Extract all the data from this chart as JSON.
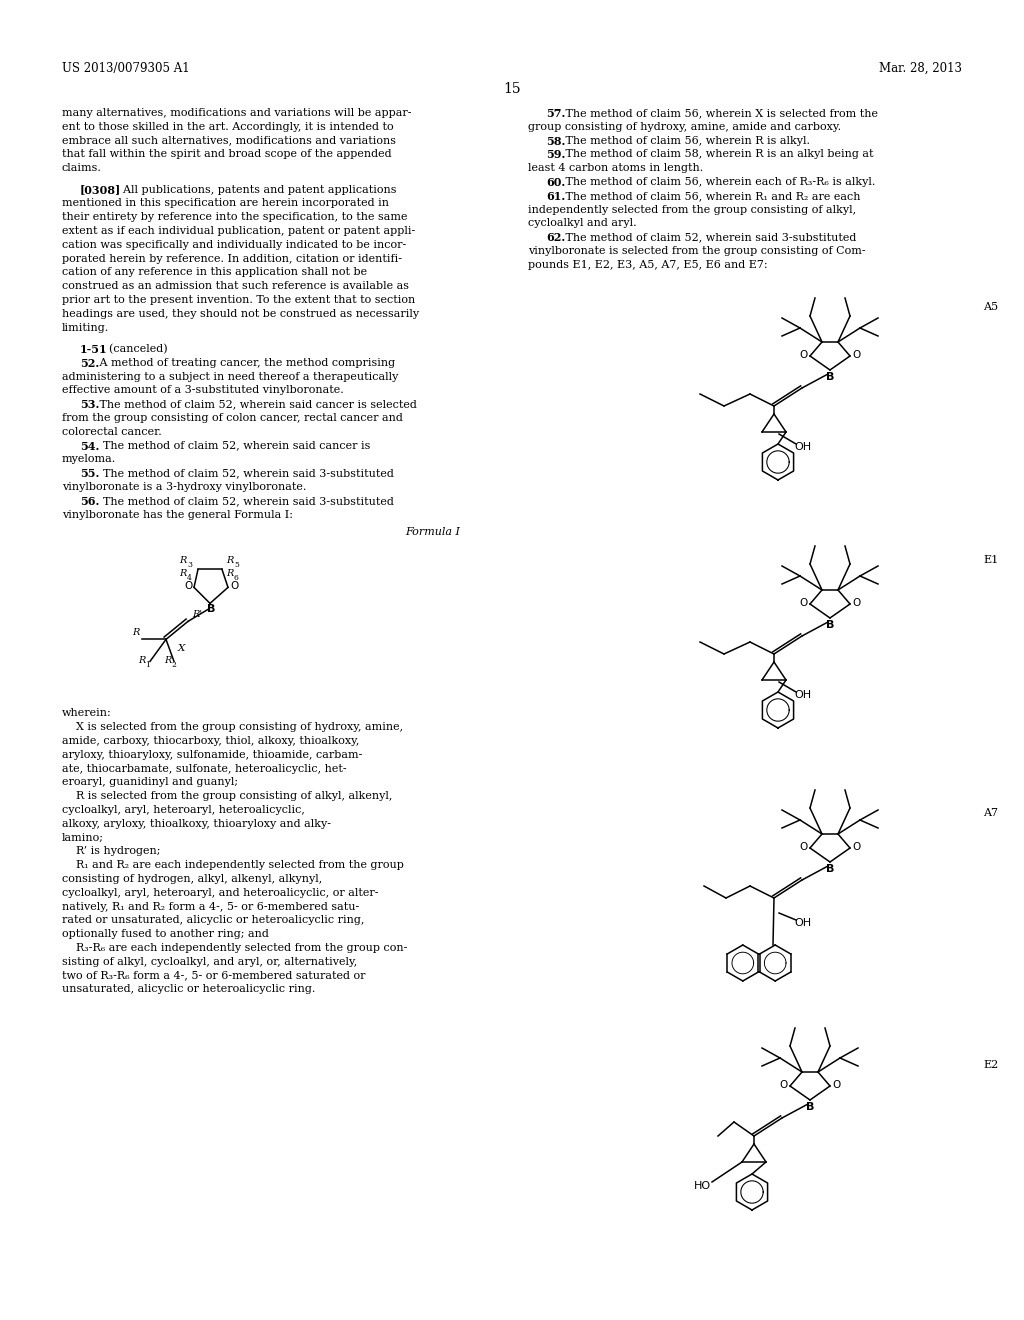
{
  "header_left": "US 2013/0079305 A1",
  "header_right": "Mar. 28, 2013",
  "page_number": "15",
  "background_color": "#ffffff",
  "text_color": "#000000",
  "left_col_lines": [
    "many alternatives, modifications and variations will be appar-",
    "ent to those skilled in the art. Accordingly, it is intended to",
    "embrace all such alternatives, modifications and variations",
    "that fall within the spirit and broad scope of the appended",
    "claims.",
    "",
    "    [0308]  All publications, patents and patent applications",
    "mentioned in this specification are herein incorporated in",
    "their entirety by reference into the specification, to the same",
    "extent as if each individual publication, patent or patent appli-",
    "cation was specifically and individually indicated to be incor-",
    "porated herein by reference. In addition, citation or identifi-",
    "cation of any reference in this application shall not be",
    "construed as an admission that such reference is available as",
    "prior art to the present invention. To the extent that to section",
    "headings are used, they should not be construed as necessarily",
    "limiting.",
    "",
    "    1-51. (canceled)",
    "    52. A method of treating cancer, the method comprising",
    "administering to a subject in need thereof a therapeutically",
    "effective amount of a 3-substituted vinylboronate.",
    "    53. The method of claim 52, wherein said cancer is selected",
    "from the group consisting of colon cancer, rectal cancer and",
    "colorectal cancer.",
    "    54.  The method of claim 52, wherein said cancer is",
    "myeloma.",
    "    55.  The method of claim 52, wherein said 3-substituted",
    "vinylboronate is a 3-hydroxy vinylboronate.",
    "    56.  The method of claim 52, wherein said 3-substituted",
    "vinylboronate has the general Formula I:"
  ],
  "right_col_lines": [
    "    57. The method of claim 56, wherein X is selected from the",
    "group consisting of hydroxy, amine, amide and carboxy.",
    "    58. The method of claim 56, wherein R is alkyl.",
    "    59. The method of claim 58, wherein R is an alkyl being at",
    "least 4 carbon atoms in length.",
    "    60. The method of claim 56, wherein each of R₃-R₆ is alkyl.",
    "    61. The method of claim 56, wherein R₁ and R₂ are each",
    "independently selected from the group consisting of alkyl,",
    "cycloalkyl and aryl.",
    "    62. The method of claim 52, wherein said 3-substituted",
    "vinylboronate is selected from the group consisting of Com-",
    "pounds E1, E2, E3, A5, A7, E5, E6 and E7:"
  ],
  "wherein_lines": [
    "wherein:",
    "   X is selected from the group consisting of hydroxy, amine,",
    "amide, carboxy, thiocarboxy, thiol, alkoxy, thioalkoxy,",
    "aryloxy, thioaryloxy, sulfonamide, thioamide, carbam-",
    "ate, thiocarbamate, sulfonate, heteroalicyclic, het-",
    "eroaryl, guanidinyl and guanyl;",
    "   R is selected from the group consisting of alkyl, alkenyl,",
    "cycloalkyl, aryl, heteroaryl, heteroalicyclic,",
    "alkoxy, aryloxy, thioalkoxy, thioaryloxy and alky-",
    "lamino;",
    "   R’ is hydrogen;",
    "   R₁ and R₂ are each independently selected from the group",
    "consisting of hydrogen, alkyl, alkenyl, alkynyl,",
    "cycloalkyl, aryl, heteroaryl, and heteroalicyclic, or alter-",
    "natively, R₁ and R₂ form a 4-, 5- or 6-membered satu-",
    "rated or unsaturated, alicyclic or heteroalicyclic ring,",
    "optionally fused to another ring; and",
    "   R₃-R₆ are each independently selected from the group con-",
    "sisting of alkyl, cycloalkyl, and aryl, or, alternatively,",
    "two of R₃-R₆ form a 4-, 5- or 6-membered saturated or",
    "unsaturated, alicyclic or heteroalicyclic ring."
  ]
}
